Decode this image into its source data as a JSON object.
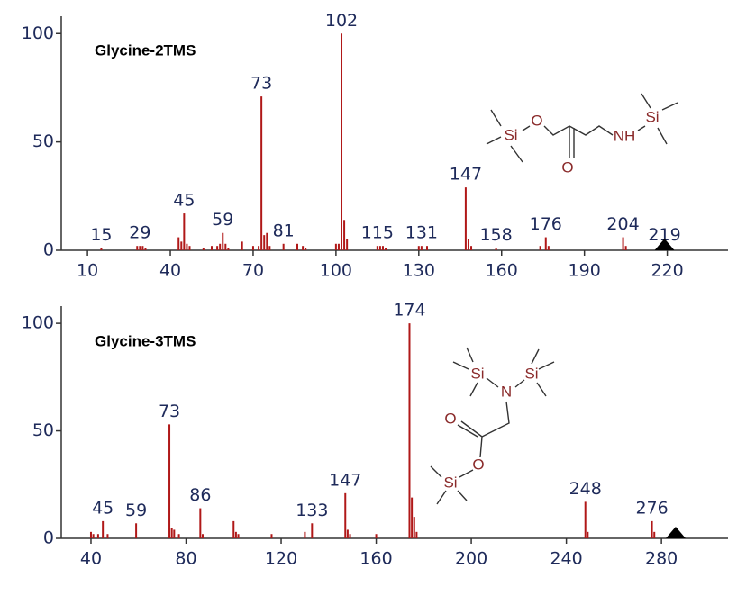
{
  "chart_data": [
    {
      "type": "spectrum",
      "title": "Glycine-2TMS",
      "color": "#b01818",
      "x": [
        15,
        28,
        29,
        30,
        31,
        43,
        44,
        45,
        46,
        47,
        52,
        55,
        57,
        58,
        59,
        60,
        61,
        66,
        70,
        72,
        73,
        74,
        75,
        76,
        81,
        86,
        88,
        89,
        100,
        101,
        102,
        103,
        104,
        115,
        116,
        117,
        118,
        130,
        131,
        133,
        147,
        148,
        149,
        158,
        174,
        176,
        177,
        204,
        205,
        219
      ],
      "values": [
        1,
        2,
        2,
        2,
        1,
        6,
        4,
        17,
        3,
        2,
        1,
        2,
        2,
        3,
        8,
        3,
        1,
        4,
        2,
        2,
        71,
        7,
        8,
        2,
        3,
        3,
        2,
        1,
        3,
        3,
        100,
        14,
        5,
        2,
        2,
        2,
        1,
        2,
        2,
        2,
        29,
        5,
        2,
        1,
        2,
        6,
        2,
        6,
        2,
        1
      ],
      "labeled_x": [
        15,
        29,
        45,
        59,
        73,
        81,
        102,
        115,
        131,
        147,
        158,
        176,
        204,
        219
      ],
      "marker_x": 219,
      "xlim": [
        0.5,
        242
      ],
      "xticks": [
        10,
        40,
        70,
        100,
        130,
        160,
        190,
        220
      ],
      "ylim": [
        0,
        108
      ],
      "yticks": [
        0,
        50,
        100
      ],
      "structure_labels": [
        "Si",
        "O",
        "O",
        "NH",
        "Si"
      ]
    },
    {
      "type": "spectrum",
      "title": "Glycine-3TMS",
      "color": "#b01818",
      "x": [
        40,
        41,
        43,
        45,
        47,
        59,
        73,
        74,
        75,
        77,
        86,
        87,
        100,
        101,
        102,
        116,
        130,
        133,
        147,
        148,
        149,
        160,
        174,
        175,
        176,
        177,
        248,
        249,
        276,
        277
      ],
      "values": [
        3,
        2,
        2,
        8,
        2,
        7,
        53,
        5,
        4,
        2,
        14,
        2,
        8,
        3,
        2,
        2,
        3,
        7,
        21,
        4,
        2,
        2,
        100,
        19,
        10,
        3,
        17,
        3,
        8,
        3
      ],
      "labeled_x": [
        45,
        59,
        73,
        86,
        133,
        147,
        174,
        248,
        276
      ],
      "marker_x": 286,
      "xlim": [
        27.5,
        308
      ],
      "xticks": [
        40,
        80,
        120,
        160,
        200,
        240,
        280
      ],
      "ylim": [
        0,
        108
      ],
      "yticks": [
        0,
        50,
        100
      ],
      "structure_labels": [
        "Si",
        "N",
        "Si",
        "O",
        "O",
        "Si"
      ]
    }
  ]
}
